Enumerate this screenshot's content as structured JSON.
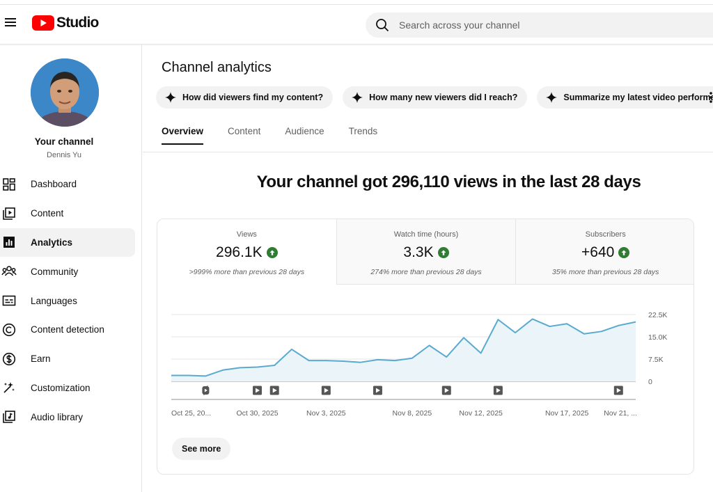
{
  "header": {
    "logo_text": "Studio",
    "search_placeholder": "Search across your channel"
  },
  "sidebar": {
    "channel_title": "Your channel",
    "channel_name": "Dennis Yu",
    "items": [
      {
        "label": "Dashboard",
        "icon": "dashboard-icon"
      },
      {
        "label": "Content",
        "icon": "content-icon"
      },
      {
        "label": "Analytics",
        "icon": "analytics-icon",
        "active": true
      },
      {
        "label": "Community",
        "icon": "community-icon"
      },
      {
        "label": "Languages",
        "icon": "subtitles-icon"
      },
      {
        "label": "Content detection",
        "icon": "copyright-icon"
      },
      {
        "label": "Earn",
        "icon": "dollar-icon"
      },
      {
        "label": "Customization",
        "icon": "magic-wand-icon"
      },
      {
        "label": "Audio library",
        "icon": "audio-library-icon"
      }
    ]
  },
  "main": {
    "title": "Channel analytics",
    "chips": [
      "How did viewers find my content?",
      "How many new viewers did I reach?",
      "Summarize my latest video performance"
    ],
    "tabs": [
      "Overview",
      "Content",
      "Audience",
      "Trends"
    ],
    "active_tab": "Overview",
    "headline": "Your channel got 296,110 views in the last 28 days",
    "metrics": [
      {
        "label": "Views",
        "value": "296.1K",
        "note": ">999% more than previous 28 days"
      },
      {
        "label": "Watch time (hours)",
        "value": "3.3K",
        "note": "274% more than previous 28 days"
      },
      {
        "label": "Subscribers",
        "value": "+640",
        "note": "35% more than previous 28 days"
      }
    ],
    "see_more": "See more"
  },
  "colors": {
    "brand_red": "#ff0000",
    "line": "#5aa9cf",
    "area_fill": "#eaf4f9",
    "positive": "#2e7d32"
  },
  "chart_data": {
    "type": "area",
    "title": "",
    "xlabel": "",
    "ylabel": "",
    "ylim": [
      0,
      22500
    ],
    "y_ticks": [
      "22.5K",
      "15.0K",
      "7.5K",
      "0"
    ],
    "y_tick_values": [
      22500,
      15000,
      7500,
      0
    ],
    "x_tick_labels": [
      "Oct 25, 20...",
      "Oct 30, 2025",
      "Nov 3, 2025",
      "Nov 8, 2025",
      "Nov 12, 2025",
      "Nov 17, 2025",
      "Nov 21, ..."
    ],
    "x_tick_index": [
      0,
      5,
      9,
      14,
      18,
      23,
      27
    ],
    "dates": [
      "Oct 25",
      "Oct 26",
      "Oct 27",
      "Oct 28",
      "Oct 29",
      "Oct 30",
      "Oct 31",
      "Nov 1",
      "Nov 2",
      "Nov 3",
      "Nov 4",
      "Nov 5",
      "Nov 6",
      "Nov 7",
      "Nov 8",
      "Nov 9",
      "Nov 10",
      "Nov 11",
      "Nov 12",
      "Nov 13",
      "Nov 14",
      "Nov 15",
      "Nov 16",
      "Nov 17",
      "Nov 18",
      "Nov 19",
      "Nov 20",
      "Nov 21"
    ],
    "values": [
      2000,
      2000,
      1800,
      3800,
      4600,
      4800,
      5400,
      10800,
      7000,
      7000,
      6800,
      6400,
      7300,
      7000,
      7800,
      12100,
      8200,
      14700,
      9500,
      20800,
      16400,
      21000,
      18500,
      19400,
      16000,
      16800,
      18800,
      20000
    ],
    "markers": [
      {
        "index": 2,
        "icon": "shorts-icon"
      },
      {
        "index": 5,
        "icon": "video-play-icon"
      },
      {
        "index": 6,
        "icon": "video-play-icon"
      },
      {
        "index": 9,
        "icon": "video-play-icon"
      },
      {
        "index": 12,
        "icon": "video-play-icon"
      },
      {
        "index": 16,
        "icon": "video-play-icon"
      },
      {
        "index": 19,
        "icon": "video-play-icon"
      },
      {
        "index": 26,
        "icon": "video-play-icon"
      }
    ],
    "grid": true
  }
}
